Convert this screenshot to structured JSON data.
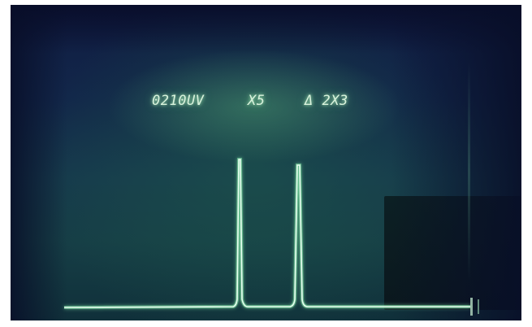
{
  "readouts": {
    "left": "0210UV",
    "middle": "X5",
    "right": "Δ 2X3"
  },
  "colors": {
    "trace": "#e6fff0",
    "trace_glow": "#7fe0a4",
    "text_glow": "#bfffcc"
  }
}
